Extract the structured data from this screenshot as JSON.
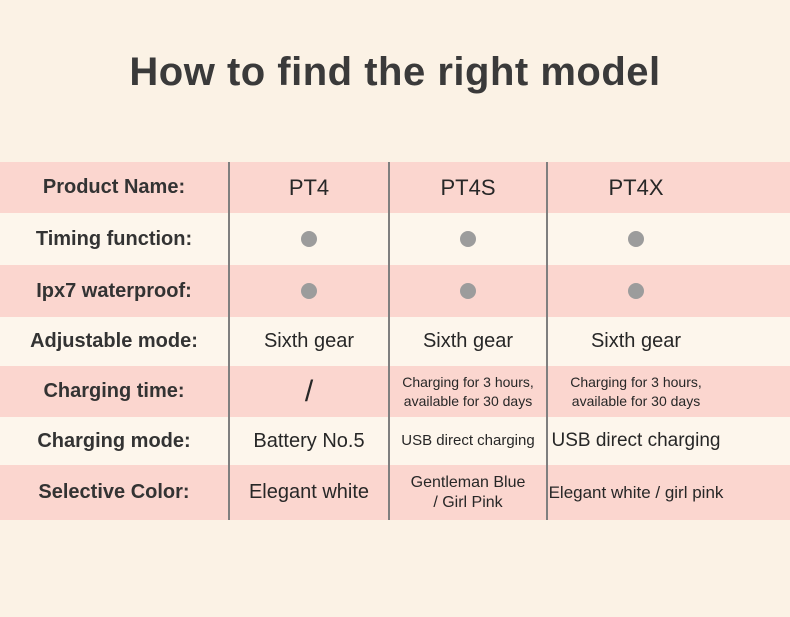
{
  "title": "How to find the right model",
  "colors": {
    "page-bg": "#fbf2e5",
    "row-pink": "#fbd6cf",
    "row-cream": "#fdf6ec",
    "divider": "#7f7f7f",
    "dot": "#9c9c9c",
    "title-text": "#3a3a3a",
    "label-text": "#333333",
    "value-text": "#272727"
  },
  "table": {
    "rows": [
      {
        "label": "Product Name:",
        "cells": [
          {
            "text": "PT4"
          },
          {
            "text": "PT4S"
          },
          {
            "text": "PT4X"
          }
        ]
      },
      {
        "label": "Timing function:",
        "cells": [
          {
            "icon": "feature-present-dot"
          },
          {
            "icon": "feature-present-dot"
          },
          {
            "icon": "feature-present-dot"
          }
        ]
      },
      {
        "label": "Ipx7 waterproof:",
        "cells": [
          {
            "icon": "feature-present-dot"
          },
          {
            "icon": "feature-present-dot"
          },
          {
            "icon": "feature-present-dot"
          }
        ]
      },
      {
        "label": "Adjustable mode:",
        "cells": [
          {
            "text": "Sixth gear"
          },
          {
            "text": "Sixth gear"
          },
          {
            "text": "Sixth gear"
          }
        ]
      },
      {
        "label": "Charging time:",
        "cells": [
          {
            "text": "/"
          },
          {
            "text": "Charging for 3 hours,\navailable for 30 days"
          },
          {
            "text": "Charging for 3 hours,\navailable for 30 days"
          }
        ]
      },
      {
        "label": "Charging mode:",
        "cells": [
          {
            "text": "Battery No.5"
          },
          {
            "text": "USB direct charging"
          },
          {
            "text": "USB direct charging"
          }
        ]
      },
      {
        "label": "Selective Color:",
        "cells": [
          {
            "text": "Elegant white"
          },
          {
            "text": "Gentleman Blue\n/ Girl Pink"
          },
          {
            "text": "Elegant white / girl pink"
          }
        ]
      }
    ]
  }
}
